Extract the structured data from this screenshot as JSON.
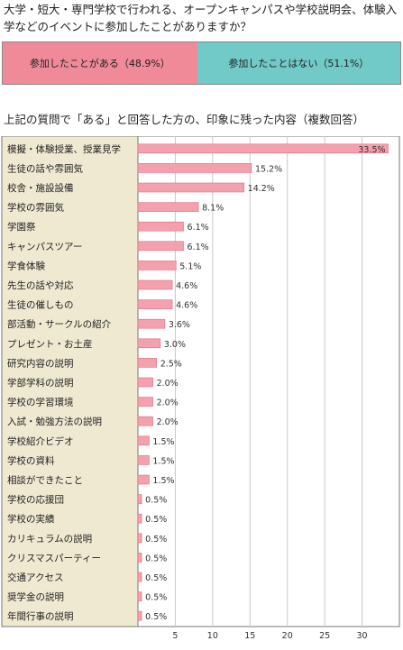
{
  "question": "大学・短大・専門学校で行われる、オープンキャンパスや学校説明会、体験入学などのイベントに参加したことがありますか？",
  "split": {
    "yes": {
      "label": "参加したことがある（48.9%）",
      "value": 48.9,
      "color": "#f08a99"
    },
    "no": {
      "label": "参加したことはない（51.1%）",
      "value": 51.1,
      "color": "#71c9c8"
    }
  },
  "chart_title": "上記の質問で「ある」と回答した方の、印象に残った内容（複数回答）",
  "chart_data": {
    "type": "bar",
    "orientation": "horizontal",
    "categories": [
      "模擬・体験授業、授業見学",
      "生徒の話や雰囲気",
      "校舎・施設設備",
      "学校の雰囲気",
      "学園祭",
      "キャンパスツアー",
      "学食体験",
      "先生の話や対応",
      "生徒の催しもの",
      "部活動・サークルの紹介",
      "プレゼント・お土産",
      "研究内容の説明",
      "学部学科の説明",
      "学校の学習環境",
      "入試・勉強方法の説明",
      "学校紹介ビデオ",
      "学校の資料",
      "相談ができたこと",
      "学校の応援団",
      "学校の実績",
      "カリキュラムの説明",
      "クリスマスパーティー",
      "交通アクセス",
      "奨学金の説明",
      "年間行事の説明"
    ],
    "values": [
      33.5,
      15.2,
      14.2,
      8.1,
      6.1,
      6.1,
      5.1,
      4.6,
      4.6,
      3.6,
      3.0,
      2.5,
      2.0,
      2.0,
      2.0,
      1.5,
      1.5,
      1.5,
      0.5,
      0.5,
      0.5,
      0.5,
      0.5,
      0.5,
      0.5
    ],
    "labels": [
      "33.5%",
      "15.2%",
      "14.2%",
      "8.1%",
      "6.1%",
      "6.1%",
      "5.1%",
      "4.6%",
      "4.6%",
      "3.6%",
      "3.0%",
      "2.5%",
      "2.0%",
      "2.0%",
      "2.0%",
      "1.5%",
      "1.5%",
      "1.5%",
      "0.5%",
      "0.5%",
      "0.5%",
      "0.5%",
      "0.5%",
      "0.5%",
      "0.5%"
    ],
    "xlim": [
      0,
      35
    ],
    "xticks": [
      5,
      10,
      15,
      20,
      25,
      30
    ],
    "grid": true,
    "bar_color": "#f4a0ad",
    "label_panel_color": "#efe9d2"
  }
}
